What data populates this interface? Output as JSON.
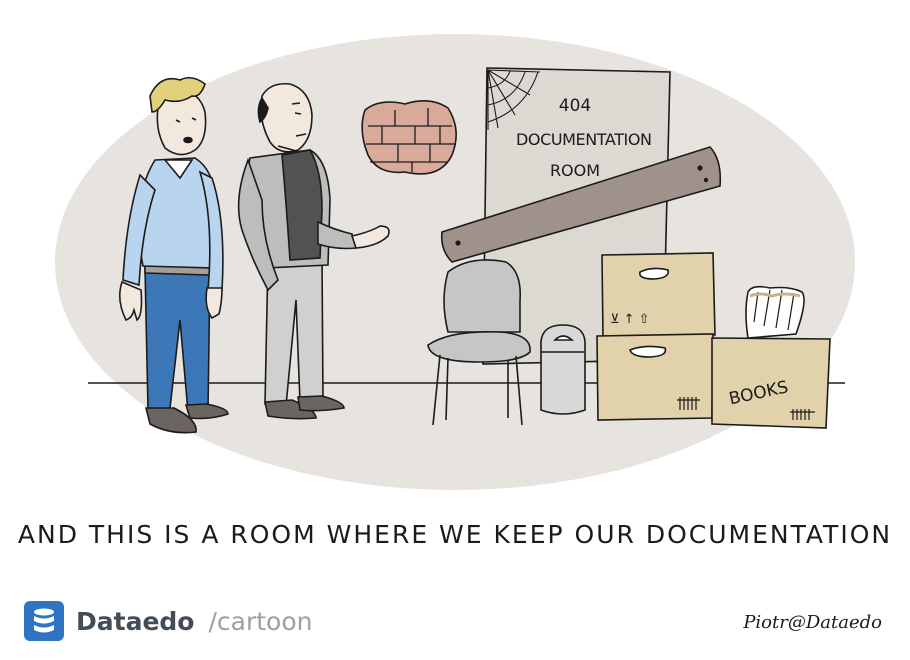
{
  "door": {
    "line1": "404",
    "line2": "DOCUMENTATION",
    "line3": "ROOM"
  },
  "box": {
    "label": "BOOKS"
  },
  "caption": "AND THIS IS A ROOM WHERE WE KEEP OUR DOCUMENTATION",
  "brand": {
    "name": "Dataedo",
    "tagline": "/cartoon",
    "icon": "database-icon",
    "color": "#2f73c3"
  },
  "signature": "Piotr@Dataedo"
}
